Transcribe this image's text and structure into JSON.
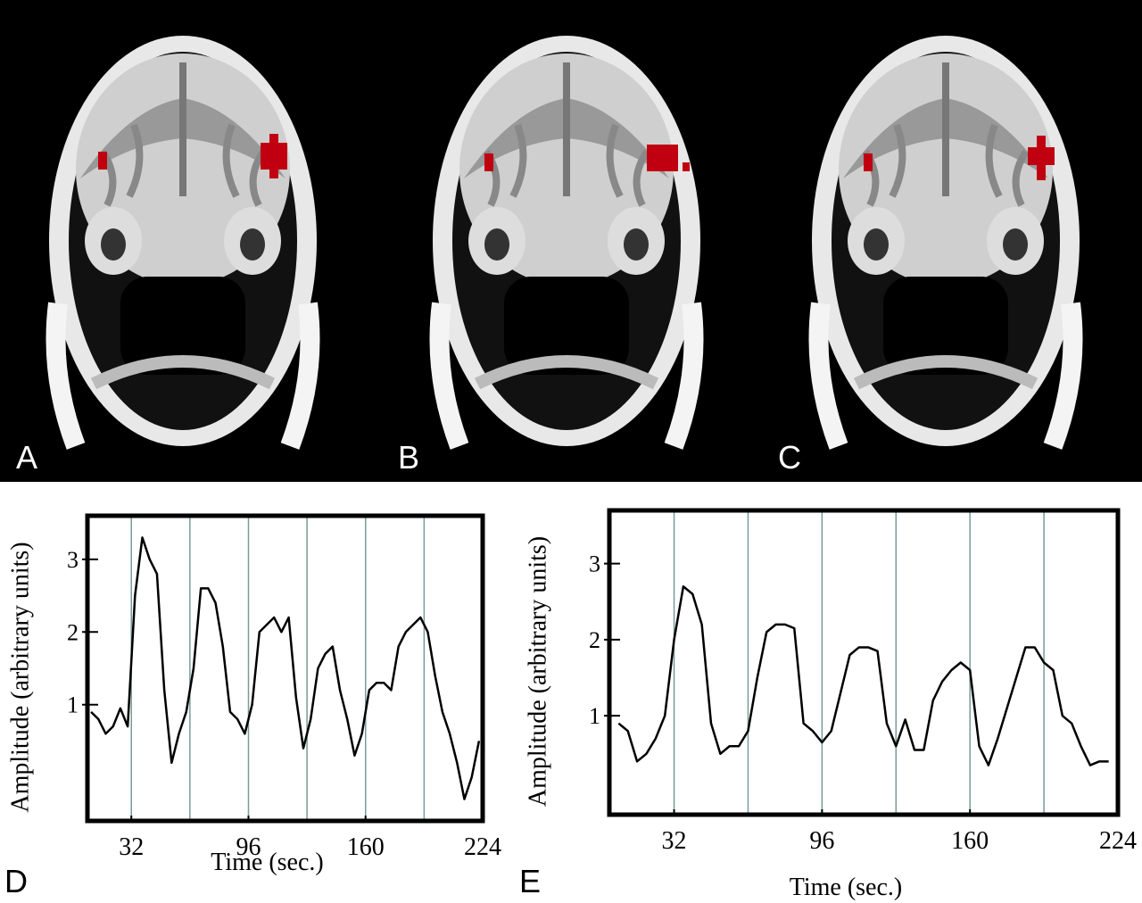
{
  "panels": [
    "A",
    "B",
    "C"
  ],
  "chart_data": [
    {
      "type": "line",
      "panel": "D",
      "xlabel": "Time (sec.)",
      "ylabel": "Amplitude (arbitrary units)",
      "xlim": [
        8,
        224
      ],
      "ylim": [
        -0.6,
        3.6
      ],
      "xticks": [
        32,
        96,
        160,
        224
      ],
      "yticks": [
        1,
        2,
        3
      ],
      "block_lines": [
        32,
        64,
        96,
        128,
        160,
        192
      ],
      "color": "#000000",
      "x": [
        10,
        14,
        18,
        22,
        26,
        30,
        34,
        38,
        42,
        46,
        50,
        54,
        58,
        62,
        66,
        70,
        74,
        78,
        82,
        86,
        90,
        94,
        98,
        102,
        106,
        110,
        114,
        118,
        122,
        126,
        130,
        134,
        138,
        142,
        146,
        150,
        154,
        158,
        162,
        166,
        170,
        174,
        178,
        182,
        186,
        190,
        194,
        198,
        202,
        206,
        210,
        214,
        218,
        222
      ],
      "values": [
        0.9,
        0.8,
        0.6,
        0.7,
        0.95,
        0.7,
        2.5,
        3.3,
        3.0,
        2.8,
        1.2,
        0.2,
        0.6,
        0.9,
        1.5,
        2.6,
        2.6,
        2.4,
        1.8,
        0.9,
        0.8,
        0.6,
        1.0,
        2.0,
        2.1,
        2.2,
        2.0,
        2.2,
        1.1,
        0.4,
        0.8,
        1.5,
        1.7,
        1.8,
        1.2,
        0.8,
        0.3,
        0.6,
        1.2,
        1.3,
        1.3,
        1.2,
        1.8,
        2.0,
        2.1,
        2.2,
        2.0,
        1.4,
        0.9,
        0.6,
        0.2,
        -0.3,
        0.0,
        0.5
      ]
    },
    {
      "type": "line",
      "panel": "E",
      "xlabel": "Time (sec.)",
      "ylabel": "Amplitude (arbitrary units)",
      "xlim": [
        4,
        224
      ],
      "ylim": [
        -0.3,
        3.7
      ],
      "xticks": [
        32,
        96,
        160,
        224
      ],
      "yticks": [
        1,
        2,
        3
      ],
      "block_lines": [
        32,
        64,
        96,
        128,
        160,
        192
      ],
      "color": "#000000",
      "x": [
        8,
        12,
        16,
        20,
        24,
        28,
        32,
        36,
        40,
        44,
        48,
        52,
        56,
        60,
        64,
        68,
        72,
        76,
        80,
        84,
        88,
        92,
        96,
        100,
        104,
        108,
        112,
        116,
        120,
        124,
        128,
        132,
        136,
        140,
        144,
        148,
        152,
        156,
        160,
        164,
        168,
        172,
        176,
        180,
        184,
        188,
        192,
        196,
        200,
        204,
        208,
        212,
        216,
        220
      ],
      "values": [
        0.9,
        0.8,
        0.4,
        0.5,
        0.7,
        1.0,
        2.0,
        2.7,
        2.6,
        2.2,
        0.9,
        0.5,
        0.6,
        0.6,
        0.8,
        1.5,
        2.1,
        2.2,
        2.2,
        2.15,
        0.9,
        0.8,
        0.65,
        0.8,
        1.3,
        1.8,
        1.9,
        1.9,
        1.85,
        0.9,
        0.6,
        0.95,
        0.55,
        0.55,
        1.2,
        1.45,
        1.6,
        1.7,
        1.6,
        0.6,
        0.35,
        0.7,
        1.1,
        1.5,
        1.9,
        1.9,
        1.7,
        1.6,
        1.0,
        0.9,
        0.6,
        0.35,
        0.4,
        0.4
      ]
    }
  ]
}
